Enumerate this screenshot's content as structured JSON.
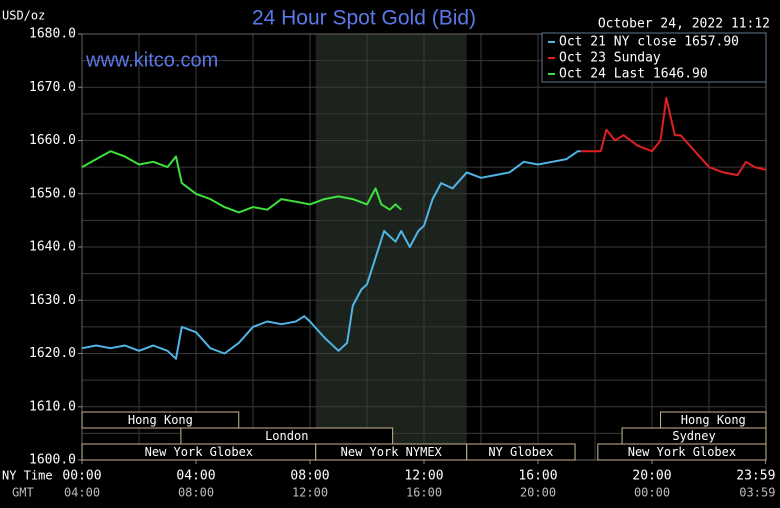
{
  "chart_data": {
    "type": "line",
    "title": "24 Hour Spot Gold (Bid)",
    "y_label": "USD/oz",
    "timestamp": "October 24, 2022 11:12",
    "source": "www.kitco.com",
    "x_label": "NY Time",
    "x2_label": "GMT",
    "xlim": [
      0,
      24
    ],
    "ylim": [
      1600,
      1680
    ],
    "xticks": [
      {
        "value": 0,
        "label": "00:00"
      },
      {
        "value": 4,
        "label": "04:00"
      },
      {
        "value": 8,
        "label": "08:00"
      },
      {
        "value": 12,
        "label": "12:00"
      },
      {
        "value": 16,
        "label": "16:00"
      },
      {
        "value": 20,
        "label": "20:00"
      },
      {
        "value": 23.98,
        "label": "23:59"
      }
    ],
    "x2ticks": [
      {
        "value": 0,
        "label": "04:00"
      },
      {
        "value": 4,
        "label": "08:00"
      },
      {
        "value": 8,
        "label": "12:00"
      },
      {
        "value": 12,
        "label": "16:00"
      },
      {
        "value": 16,
        "label": "20:00"
      },
      {
        "value": 20,
        "label": "00:00"
      },
      {
        "value": 23.98,
        "label": "03:59"
      }
    ],
    "yticks": [
      {
        "value": 1600,
        "label": "1600.0"
      },
      {
        "value": 1610,
        "label": "1610.0"
      },
      {
        "value": 1620,
        "label": "1620.0"
      },
      {
        "value": 1630,
        "label": "1630.0"
      },
      {
        "value": 1640,
        "label": "1640.0"
      },
      {
        "value": 1650,
        "label": "1650.0"
      },
      {
        "value": 1660,
        "label": "1660.0"
      },
      {
        "value": 1670,
        "label": "1670.0"
      },
      {
        "value": 1680,
        "label": "1680.0"
      }
    ],
    "xgrid": [
      2,
      4,
      6,
      8,
      10,
      12,
      14,
      16,
      18,
      20,
      22
    ],
    "ygrid": [
      1605,
      1610,
      1615,
      1620,
      1625,
      1630,
      1635,
      1640,
      1645,
      1650,
      1655,
      1660,
      1665,
      1670,
      1675
    ],
    "grid": true,
    "sessions": [
      {
        "label": "Hong Kong",
        "start": 0,
        "end": 5.5
      },
      {
        "label": "Hong Kong",
        "start": 20.3,
        "end": 24
      },
      {
        "label": "London",
        "start": 3.47,
        "end": 10.9
      },
      {
        "label": "Sydney",
        "start": 18.95,
        "end": 24
      },
      {
        "label": "New York Globex",
        "start": 0,
        "end": 8.2
      },
      {
        "label": "New York NYMEX",
        "start": 8.2,
        "end": 13.5
      },
      {
        "label": "NY Globex",
        "start": 13.5,
        "end": 17.3
      },
      {
        "label": "New York Globex",
        "start": 18.1,
        "end": 24
      }
    ],
    "series": [
      {
        "name": "Oct 21 NY close 1657.90",
        "color": "#4fb4e6",
        "x": [
          0,
          0.5,
          1,
          1.5,
          2,
          2.5,
          3,
          3.3,
          3.5,
          4,
          4.5,
          5,
          5.5,
          6,
          6.5,
          7,
          7.5,
          7.8,
          8,
          8.5,
          9,
          9.3,
          9.5,
          9.8,
          10,
          10.3,
          10.6,
          11,
          11.2,
          11.5,
          11.8,
          12,
          12.3,
          12.6,
          13,
          13.5,
          14,
          14.5,
          15,
          15.5,
          16,
          16.5,
          17,
          17.4,
          17.5
        ],
        "values": [
          1621,
          1621.5,
          1621,
          1621.5,
          1620.5,
          1621.5,
          1620.5,
          1619,
          1625,
          1624,
          1621,
          1620,
          1622,
          1625,
          1626,
          1625.5,
          1626,
          1627,
          1626,
          1623,
          1620.5,
          1622,
          1629,
          1632,
          1633,
          1638,
          1643,
          1641,
          1643,
          1640,
          1643,
          1644,
          1649,
          1652,
          1651,
          1654,
          1653,
          1653.5,
          1654,
          1656,
          1655.5,
          1656,
          1656.5,
          1658,
          1658
        ]
      },
      {
        "name": "Oct 23 Sunday",
        "color": "#e02020",
        "x": [
          17.5,
          18.2,
          18.4,
          18.7,
          19,
          19.5,
          20,
          20.3,
          20.5,
          20.8,
          21,
          21.5,
          22,
          22.5,
          23,
          23.3,
          23.6,
          24
        ],
        "values": [
          1658,
          1658,
          1662,
          1660,
          1661,
          1659,
          1658,
          1660,
          1668,
          1661,
          1661,
          1658,
          1655,
          1654,
          1653.5,
          1656,
          1655,
          1654.5
        ]
      },
      {
        "name": "Oct 24 Last 1646.90",
        "color": "#3ee03e",
        "x": [
          0,
          0.5,
          1,
          1.5,
          2,
          2.5,
          3,
          3.3,
          3.5,
          4,
          4.5,
          5,
          5.5,
          6,
          6.5,
          7,
          7.5,
          8,
          8.5,
          9,
          9.5,
          10,
          10.3,
          10.5,
          10.8,
          11,
          11.2
        ],
        "values": [
          1655,
          1656.5,
          1658,
          1657,
          1655.5,
          1656,
          1655,
          1657,
          1652,
          1650,
          1649,
          1647.5,
          1646.5,
          1647.5,
          1647,
          1649,
          1648.5,
          1648,
          1649,
          1649.5,
          1649,
          1648,
          1651,
          1648,
          1647,
          1648,
          1647
        ]
      }
    ]
  }
}
